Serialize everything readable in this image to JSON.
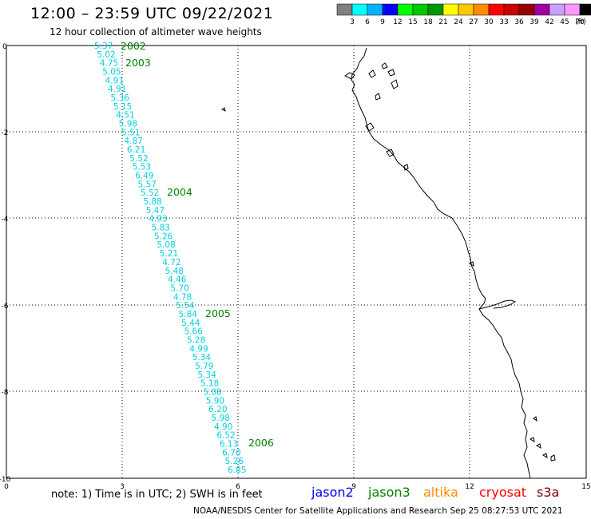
{
  "header": {
    "title": "12:00 – 23:59 UTC 09/22/2021",
    "subtitle": "12 hour collection of altimeter wave heights"
  },
  "legend": {
    "unit": "(ft)",
    "colors": [
      "#808080",
      "#00ffff",
      "#00b3ff",
      "#0000ff",
      "#00ff00",
      "#00c800",
      "#009600",
      "#ffff00",
      "#ffc800",
      "#ff8c00",
      "#ff0000",
      "#c80000",
      "#960000",
      "#a000a0",
      "#c8a0ff",
      "#ff96ff",
      "#000000"
    ],
    "labels": [
      "3",
      "6",
      "9",
      "12",
      "15",
      "18",
      "21",
      "24",
      "27",
      "30",
      "33",
      "36",
      "39",
      "42",
      "45",
      "70"
    ]
  },
  "axes": {
    "x_ticks": [
      "0",
      "3",
      "6",
      "9",
      "12",
      "15"
    ],
    "y_ticks": [
      "0",
      "-2",
      "-4",
      "-6",
      "-8",
      "-10"
    ]
  },
  "time_labels": [
    "2002",
    "2003",
    "2004",
    "2005",
    "2006"
  ],
  "time_label_color": "#008000",
  "wave_color": "#00d0e0",
  "wave_heights": [
    "5.37",
    "5.02",
    "4.75",
    "5.05",
    "4.91",
    "4.91",
    "5.36",
    "5.15",
    "4.51",
    "5.98",
    "5.51",
    "4.87",
    "6.21",
    "5.52",
    "5.53",
    "6.49",
    "5.57",
    "5.52",
    "5.88",
    "5.47",
    "4.93",
    "5.83",
    "5.26",
    "5.08",
    "5.21",
    "4.72",
    "5.48",
    "4.46",
    "5.70",
    "4.78",
    "5.54",
    "5.84",
    "5.44",
    "5.66",
    "5.28",
    "4.99",
    "5.34",
    "5.79",
    "5.34",
    "5.18",
    "5.08",
    "5.90",
    "6.20",
    "5.98",
    "4.90",
    "6.52",
    "6.13",
    "6.70",
    "5.26",
    "6.85"
  ],
  "footer": {
    "note": "note:  1) Time is in UTC; 2) SWH is in feet",
    "credit": "NOAA/NESDIS Center for Satellite Applications and Research     Sep 25 08:27:53 UTC 2021",
    "satellites": [
      {
        "name": "jason2",
        "color": "#0000ff"
      },
      {
        "name": "jason3",
        "color": "#008000"
      },
      {
        "name": "altika",
        "color": "#ff8c00"
      },
      {
        "name": "cryosat",
        "color": "#ff0000"
      },
      {
        "name": "s3a",
        "color": "#800000"
      }
    ]
  }
}
